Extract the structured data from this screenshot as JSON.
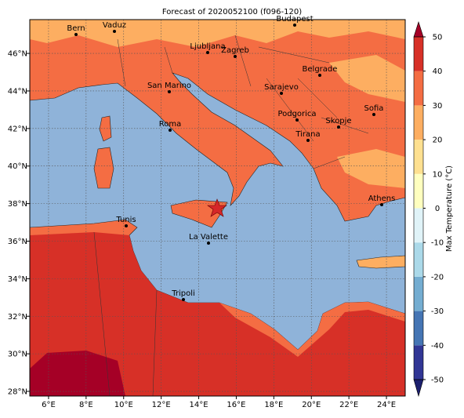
{
  "title": "Forecast of 2020052100 (f096-120)",
  "map": {
    "xlim": [
      5,
      25
    ],
    "ylim": [
      27.75,
      47.8
    ],
    "grid": true,
    "xticks": [
      {
        "value": 6,
        "label": "6°E"
      },
      {
        "value": 8,
        "label": "8°E"
      },
      {
        "value": 10,
        "label": "10°E"
      },
      {
        "value": 12,
        "label": "12°E"
      },
      {
        "value": 14,
        "label": "14°E"
      },
      {
        "value": 16,
        "label": "16°E"
      },
      {
        "value": 18,
        "label": "18°E"
      },
      {
        "value": 20,
        "label": "20°E"
      },
      {
        "value": 22,
        "label": "22°E"
      },
      {
        "value": 24,
        "label": "24°E"
      }
    ],
    "yticks": [
      {
        "value": 28,
        "label": "28°N"
      },
      {
        "value": 30,
        "label": "30°N"
      },
      {
        "value": 32,
        "label": "32°N"
      },
      {
        "value": 34,
        "label": "34°N"
      },
      {
        "value": 36,
        "label": "36°N"
      },
      {
        "value": 38,
        "label": "38°N"
      },
      {
        "value": 40,
        "label": "40°N"
      },
      {
        "value": 42,
        "label": "42°N"
      },
      {
        "value": 44,
        "label": "44°N"
      },
      {
        "value": 46,
        "label": "46°N"
      }
    ],
    "cities": [
      "Bern",
      "Vaduz",
      "Budapest",
      "Ljubljana",
      "Zagreb",
      "Belgrade",
      "San Marino",
      "Sarajevo",
      "Roma",
      "Podgorica",
      "Sofia",
      "Skopje",
      "Tirana",
      "Athens",
      "Tunis",
      "La Valette",
      "Tripoli"
    ]
  },
  "colorbar": {
    "label": "Max Temperature (°C)",
    "ticks": [
      -50,
      -40,
      -30,
      -20,
      -10,
      0,
      10,
      20,
      30,
      40,
      50
    ],
    "colors": [
      "#313695",
      "#4575b4",
      "#74add1",
      "#abd9e9",
      "#e0f3f8",
      "#ffffbf",
      "#fee090",
      "#fdae61",
      "#f46d43",
      "#d73027"
    ],
    "under_color": "#1c1f6e",
    "over_color": "#a50026"
  }
}
